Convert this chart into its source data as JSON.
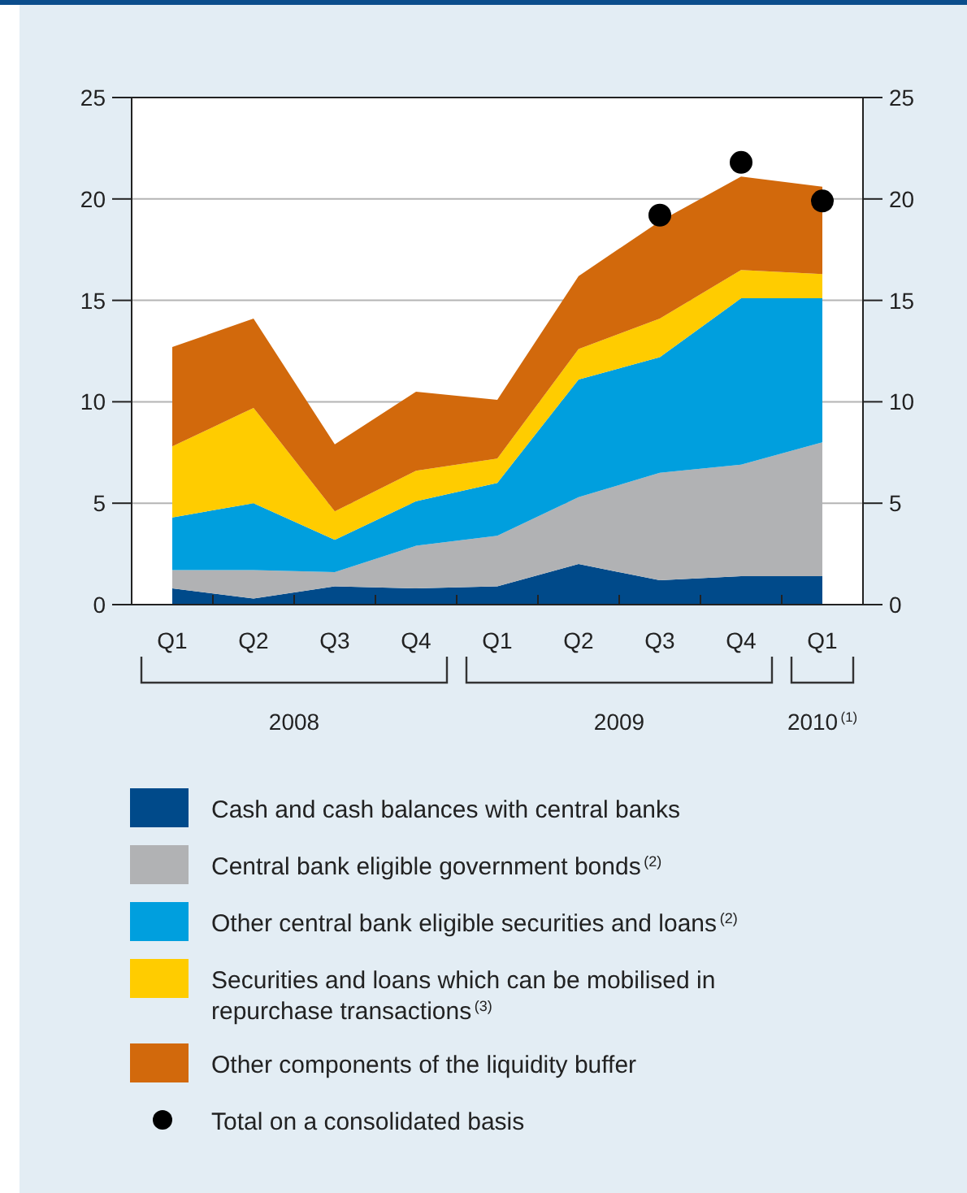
{
  "chart_data": {
    "type": "area",
    "stacked": true,
    "categories": [
      "Q1",
      "Q2",
      "Q3",
      "Q4",
      "Q1",
      "Q2",
      "Q3",
      "Q4",
      "Q1"
    ],
    "series": [
      {
        "name": "Cash and cash balances with central banks",
        "color": "#004a8a",
        "values": [
          0.8,
          0.3,
          0.9,
          0.8,
          0.9,
          2.0,
          1.2,
          1.4,
          1.4
        ]
      },
      {
        "name": "Central bank eligible government bonds$^{(2)}$",
        "color": "#b1b2b4",
        "values": [
          0.9,
          1.4,
          0.7,
          2.1,
          2.5,
          3.3,
          5.3,
          5.5,
          6.6
        ]
      },
      {
        "name": "Other central bank eligible securities and loans$^{(2)}$",
        "color": "#009fde",
        "values": [
          2.6,
          3.3,
          1.6,
          2.2,
          2.6,
          5.8,
          5.7,
          8.2,
          7.1
        ]
      },
      {
        "name": "Securities and loans which can be mobilised in repurchase transactions$^{(3)}$",
        "color": "#ffcc00",
        "values": [
          3.5,
          4.7,
          1.4,
          1.5,
          1.2,
          1.5,
          1.9,
          1.4,
          1.2
        ]
      },
      {
        "name": "Other components of the liquidity buffer",
        "color": "#d2690c",
        "values": [
          4.9,
          4.4,
          3.3,
          3.9,
          2.9,
          3.6,
          4.8,
          4.6,
          4.3
        ]
      },
      {
        "name": "Total on a consolidated basis",
        "type": "scatter",
        "color": "#000000",
        "marker": "circle",
        "values": [
          null,
          null,
          null,
          null,
          null,
          null,
          19.2,
          21.8,
          19.9
        ]
      }
    ],
    "ylim": [
      0,
      25
    ],
    "yticks": [
      0,
      5,
      10,
      15,
      20,
      25
    ],
    "y2lim": [
      0,
      25
    ],
    "y2ticks": [
      0,
      5,
      10,
      15,
      20,
      25
    ],
    "grid": "y",
    "legend": "bottom",
    "annotations": [
      "2008",
      "2009",
      "2010$^{(1)}$"
    ]
  }
}
